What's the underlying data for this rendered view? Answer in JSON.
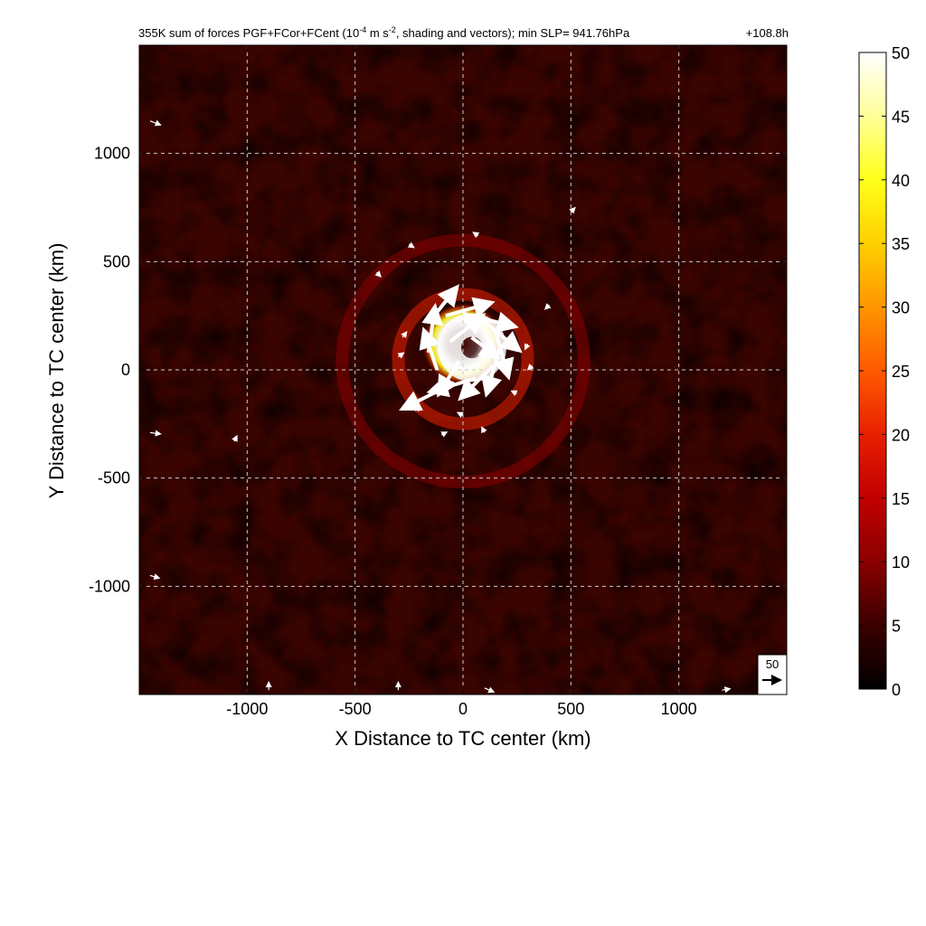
{
  "chart_data": {
    "type": "heatmap",
    "title": {
      "prefix": "355K sum of forces PGF+FCor+FCent (10",
      "exponent_1": "-4",
      "middle": " m s",
      "exponent_2": "-2",
      "suffix": ", shading and vectors); min SLP= 941.76hPa",
      "time": "+108.8h"
    },
    "xlabel": "X Distance to TC center (km)",
    "ylabel": "Y Distance to TC center (km)",
    "xlim": [
      -1500,
      1500
    ],
    "ylim": [
      -1500,
      1500
    ],
    "x_ticks": [
      -1000,
      -500,
      0,
      500,
      1000
    ],
    "y_ticks": [
      -1000,
      -500,
      0,
      500,
      1000
    ],
    "grid": true,
    "colorbar": {
      "range": [
        0,
        50
      ],
      "ticks": [
        0,
        5,
        10,
        15,
        20,
        25,
        30,
        35,
        40,
        45,
        50
      ],
      "colormap": [
        "#000000",
        "#3a0000",
        "#8a0000",
        "#c20000",
        "#e82000",
        "#ff5a00",
        "#ff9500",
        "#ffd000",
        "#ffff1a",
        "#ffff99",
        "#ffffff"
      ]
    },
    "vector_reference": {
      "label": "50",
      "magnitude": 50
    },
    "field_features": [
      {
        "name": "eyewall_max",
        "center_x": 0,
        "center_y": 120,
        "radius_km": 190,
        "peak_value": 50
      },
      {
        "name": "inner_ring",
        "center_x": 0,
        "center_y": 50,
        "radius_km": 300,
        "peak_value": 18
      },
      {
        "name": "outer_ring",
        "center_x": 0,
        "center_y": 40,
        "radius_km": 560,
        "peak_value": 12
      }
    ],
    "vectors": [
      {
        "x": -150,
        "y": 230,
        "u": 20,
        "v": 25
      },
      {
        "x": -80,
        "y": 250,
        "u": 35,
        "v": 10
      },
      {
        "x": 0,
        "y": 260,
        "u": 40,
        "v": -10
      },
      {
        "x": 80,
        "y": 240,
        "u": 30,
        "v": -25
      },
      {
        "x": 150,
        "y": 180,
        "u": 10,
        "v": -35
      },
      {
        "x": 170,
        "y": 100,
        "u": -10,
        "v": -35
      },
      {
        "x": 140,
        "y": 20,
        "u": -25,
        "v": -25
      },
      {
        "x": 60,
        "y": -40,
        "u": -35,
        "v": -10
      },
      {
        "x": -40,
        "y": -60,
        "u": -40,
        "v": -20
      },
      {
        "x": -120,
        "y": 0,
        "u": -10,
        "v": 30
      },
      {
        "x": -160,
        "y": 80,
        "u": 5,
        "v": 35
      },
      {
        "x": -60,
        "y": 130,
        "u": 25,
        "v": 20
      },
      {
        "x": 40,
        "y": 150,
        "u": 20,
        "v": -15
      },
      {
        "x": -20,
        "y": 40,
        "u": -15,
        "v": -25
      },
      {
        "x": -280,
        "y": 150,
        "u": 3,
        "v": 4
      },
      {
        "x": -300,
        "y": 60,
        "u": 4,
        "v": 3
      },
      {
        "x": 300,
        "y": 120,
        "u": -2,
        "v": -4
      },
      {
        "x": 320,
        "y": 20,
        "u": -3,
        "v": -3
      },
      {
        "x": 250,
        "y": -110,
        "u": -4,
        "v": 2
      },
      {
        "x": 0,
        "y": -210,
        "u": -4,
        "v": 2
      },
      {
        "x": -220,
        "y": -190,
        "u": 3,
        "v": 4
      },
      {
        "x": -100,
        "y": -300,
        "u": 4,
        "v": 2
      },
      {
        "x": 100,
        "y": -290,
        "u": -2,
        "v": 4
      },
      {
        "x": 400,
        "y": 300,
        "u": -3,
        "v": -3
      },
      {
        "x": -400,
        "y": 450,
        "u": 3,
        "v": -3
      },
      {
        "x": 70,
        "y": 620,
        "u": -3,
        "v": 2
      },
      {
        "x": -250,
        "y": 580,
        "u": 3,
        "v": -2
      },
      {
        "x": 500,
        "y": 730,
        "u": 3,
        "v": 3
      },
      {
        "x": -1060,
        "y": -330,
        "u": 2,
        "v": 4
      },
      {
        "x": -1450,
        "y": 1150,
        "u": 8,
        "v": -3
      },
      {
        "x": -1450,
        "y": -290,
        "u": 8,
        "v": -1
      },
      {
        "x": -1450,
        "y": -950,
        "u": 7,
        "v": -2
      },
      {
        "x": -900,
        "y": -1480,
        "u": 0,
        "v": 6
      },
      {
        "x": 100,
        "y": -1470,
        "u": 7,
        "v": -3
      },
      {
        "x": -300,
        "y": -1480,
        "u": 0,
        "v": 6
      },
      {
        "x": 1200,
        "y": -1480,
        "u": 6,
        "v": 1
      }
    ]
  }
}
